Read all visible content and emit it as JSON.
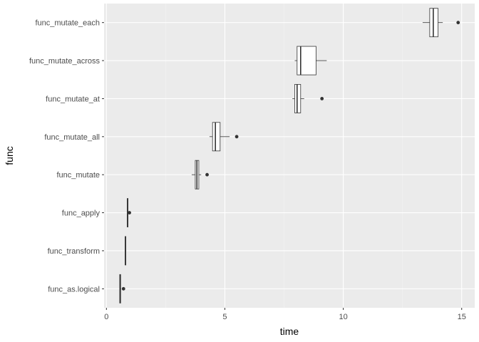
{
  "colors": {
    "panel": "#ebebeb",
    "grid_major": "#ffffff",
    "grid_minor": "#f5f5f5",
    "box_fill": "#ffffff",
    "box_stroke": "#333333",
    "outlier": "#333333",
    "tick": "#333333"
  },
  "chart_data": {
    "type": "boxplot",
    "orientation": "horizontal",
    "title": "",
    "xlabel": "time",
    "ylabel": "func",
    "xlim": [
      -0.1,
      15.55
    ],
    "x_ticks": [
      0,
      5,
      10,
      15
    ],
    "x_tick_labels": [
      "0",
      "5",
      "10",
      "15"
    ],
    "grid": true,
    "categories": [
      "func_as.logical",
      "func_transform",
      "func_apply",
      "func_mutate",
      "func_mutate_all",
      "func_mutate_at",
      "func_mutate_across",
      "func_mutate_each"
    ],
    "boxes": [
      {
        "name": "func_as.logical",
        "whisker_low": 0.55,
        "q1": 0.56,
        "median": 0.58,
        "q3": 0.6,
        "whisker_high": 0.62,
        "outliers": [
          0.72
        ]
      },
      {
        "name": "func_transform",
        "whisker_low": 0.78,
        "q1": 0.79,
        "median": 0.8,
        "q3": 0.82,
        "whisker_high": 0.83,
        "outliers": []
      },
      {
        "name": "func_apply",
        "whisker_low": 0.87,
        "q1": 0.88,
        "median": 0.89,
        "q3": 0.9,
        "whisker_high": 0.92,
        "outliers": [
          0.97
        ]
      },
      {
        "name": "func_mutate",
        "whisker_low": 3.6,
        "q1": 3.75,
        "median": 3.82,
        "q3": 3.9,
        "whisker_high": 4.0,
        "outliers": [
          4.25
        ]
      },
      {
        "name": "func_mutate_all",
        "whisker_low": 4.35,
        "q1": 4.48,
        "median": 4.6,
        "q3": 4.8,
        "whisker_high": 5.2,
        "outliers": [
          5.5
        ]
      },
      {
        "name": "func_mutate_at",
        "whisker_low": 7.85,
        "q1": 7.95,
        "median": 8.05,
        "q3": 8.2,
        "whisker_high": 8.35,
        "outliers": [
          9.1
        ]
      },
      {
        "name": "func_mutate_across",
        "whisker_low": 7.95,
        "q1": 8.05,
        "median": 8.2,
        "q3": 8.85,
        "whisker_high": 9.3,
        "outliers": []
      },
      {
        "name": "func_mutate_each",
        "whisker_low": 13.35,
        "q1": 13.65,
        "median": 13.8,
        "q3": 14.0,
        "whisker_high": 14.2,
        "outliers": [
          14.85
        ]
      }
    ]
  }
}
